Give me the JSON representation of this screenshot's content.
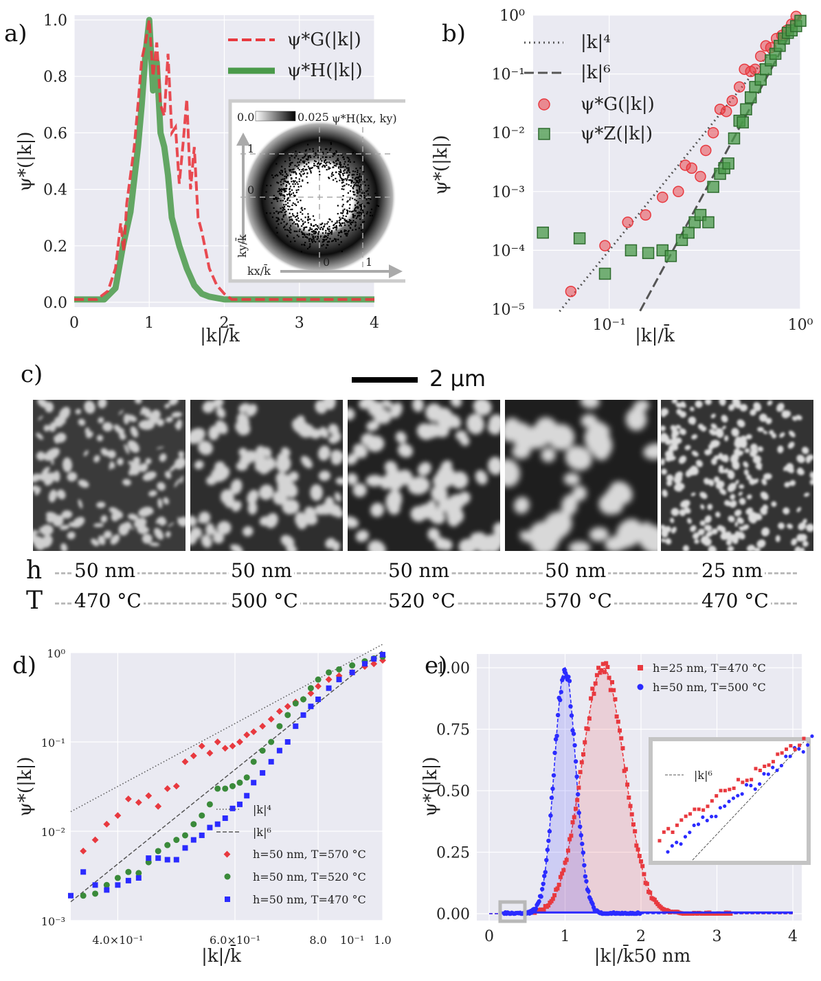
{
  "panel_labels": {
    "a": "a)",
    "b": "b)",
    "c": "c)",
    "d": "d)",
    "e": "e)"
  },
  "scalebar": {
    "label": "2 μm"
  },
  "params": {
    "h_label": "h",
    "T_label": "T",
    "h_values": [
      "50 nm",
      "50 nm",
      "50 nm",
      "50 nm",
      "25 nm"
    ],
    "T_values": [
      "470 °C",
      "500 °C",
      "520 °C",
      "570 °C",
      "470 °C"
    ]
  },
  "colors": {
    "red": "#e8393f",
    "green": "#4a9a4a",
    "blue": "#2b2bff",
    "gray": "#555555"
  },
  "chart_data": [
    {
      "id": "a",
      "type": "line",
      "xlabel": "|k|/k̄",
      "ylabel": "ψ*(|k|)",
      "xlim": [
        0,
        4
      ],
      "ylim": [
        0,
        1.0
      ],
      "xticks": [
        "0",
        "1",
        "2",
        "3",
        "4"
      ],
      "yticks": [
        "0.0",
        "0.2",
        "0.4",
        "0.6",
        "0.8",
        "1.0"
      ],
      "series": [
        {
          "name": "ψ*G(|k|)",
          "style": "dashed",
          "color": "#e8393f",
          "x": [
            0,
            0.3,
            0.45,
            0.55,
            0.62,
            0.66,
            0.7,
            0.75,
            0.8,
            0.85,
            0.9,
            0.95,
            1.0,
            1.05,
            1.1,
            1.15,
            1.2,
            1.25,
            1.3,
            1.35,
            1.4,
            1.45,
            1.5,
            1.55,
            1.6,
            1.65,
            1.7,
            1.8,
            1.9,
            2.0,
            2.1,
            4.0
          ],
          "y": [
            0.01,
            0.01,
            0.04,
            0.12,
            0.28,
            0.18,
            0.35,
            0.45,
            0.55,
            0.7,
            0.86,
            0.92,
            1.0,
            0.8,
            0.92,
            0.7,
            0.66,
            0.88,
            0.6,
            0.62,
            0.42,
            0.56,
            0.72,
            0.4,
            0.55,
            0.3,
            0.25,
            0.12,
            0.06,
            0.03,
            0.01,
            0.01
          ]
        },
        {
          "name": "ψ*H(|k|)",
          "style": "solid",
          "color": "#4a9a4a",
          "x": [
            0,
            0.4,
            0.55,
            0.65,
            0.75,
            0.85,
            0.9,
            0.95,
            1.0,
            1.05,
            1.1,
            1.15,
            1.2,
            1.25,
            1.3,
            1.4,
            1.5,
            1.6,
            1.7,
            1.8,
            2.0,
            4.0
          ],
          "y": [
            0.01,
            0.01,
            0.05,
            0.2,
            0.32,
            0.55,
            0.7,
            0.88,
            1.0,
            0.75,
            0.85,
            0.6,
            0.55,
            0.45,
            0.3,
            0.2,
            0.12,
            0.06,
            0.03,
            0.02,
            0.01,
            0.01
          ]
        }
      ],
      "inset": {
        "title": "ψ*H(kx, ky)",
        "colorbar_min": "0.0",
        "colorbar_max": "0.025",
        "xlabel": "kx/k̄",
        "ylabel": "ky/k̄",
        "ticks": [
          "0",
          "1"
        ]
      }
    },
    {
      "id": "b",
      "type": "scatter",
      "scale": "loglog",
      "xlabel": "|k|/k̄",
      "ylabel": "ψ*(|k|)",
      "xlim": [
        0.04,
        1.0
      ],
      "ylim": [
        1e-05,
        1
      ],
      "xticks": [
        "10⁻¹",
        "10⁰"
      ],
      "yticks": [
        "10⁻⁵",
        "10⁻⁴",
        "10⁻³",
        "10⁻²",
        "10⁻¹",
        "10⁰"
      ],
      "lines": [
        {
          "name": "|k|⁴",
          "style": "dotted",
          "exponent": 4,
          "coef": 1.0,
          "x": [
            0.055,
            1.0
          ]
        },
        {
          "name": "|k|⁶",
          "style": "dashed",
          "exponent": 6,
          "coef": 1.0,
          "x": [
            0.145,
            1.0
          ]
        }
      ],
      "series": [
        {
          "name": "ψ*G(|k|)",
          "marker": "circle",
          "color": "#e8393f",
          "x": [
            0.063,
            0.095,
            0.125,
            0.155,
            0.19,
            0.23,
            0.25,
            0.27,
            0.3,
            0.32,
            0.35,
            0.38,
            0.41,
            0.44,
            0.48,
            0.51,
            0.55,
            0.58,
            0.62,
            0.66,
            0.7,
            0.75,
            0.8,
            0.85,
            0.9,
            0.95
          ],
          "y": [
            2e-05,
            0.00012,
            0.0003,
            0.0004,
            0.0008,
            0.001,
            0.0028,
            0.0025,
            0.0018,
            0.005,
            0.01,
            0.025,
            0.023,
            0.035,
            0.06,
            0.12,
            0.11,
            0.12,
            0.2,
            0.3,
            0.28,
            0.4,
            0.45,
            0.55,
            0.7,
            0.95
          ]
        },
        {
          "name": "ψ*Z(|k|)",
          "marker": "square",
          "color": "#4a9a4a",
          "x": [
            0.045,
            0.07,
            0.095,
            0.13,
            0.16,
            0.19,
            0.21,
            0.24,
            0.26,
            0.28,
            0.3,
            0.33,
            0.35,
            0.38,
            0.4,
            0.42,
            0.45,
            0.48,
            0.5,
            0.52,
            0.55,
            0.58,
            0.62,
            0.66,
            0.7,
            0.74,
            0.78,
            0.82,
            0.86,
            0.9,
            0.95,
            1.0
          ],
          "y": [
            0.0002,
            0.00016,
            4e-05,
            0.0001,
            9e-05,
            0.0001,
            8e-05,
            0.00015,
            0.0002,
            0.0003,
            0.0004,
            0.0003,
            0.0012,
            0.002,
            0.0025,
            0.003,
            0.008,
            0.016,
            0.015,
            0.025,
            0.04,
            0.06,
            0.08,
            0.12,
            0.17,
            0.22,
            0.3,
            0.4,
            0.5,
            0.55,
            0.65,
            0.8
          ]
        }
      ]
    },
    {
      "id": "d",
      "type": "scatter",
      "scale": "loglog",
      "xlabel": "|k|/k̄",
      "ylabel": "ψ*(|k|)",
      "xlim": [
        0.34,
        1.0
      ],
      "ylim": [
        0.001,
        1
      ],
      "xticks": [
        "4.0×10⁻¹",
        "6.0×10⁻¹",
        "8.0",
        "10⁻¹",
        "1.0"
      ],
      "yticks": [
        "10⁻³",
        "10⁻²",
        "10⁻¹",
        "10⁰"
      ],
      "lines": [
        {
          "name": "|k|⁴",
          "style": "dotted",
          "exponent": 4,
          "coef": 1.24
        },
        {
          "name": "|k|⁶",
          "style": "dashed",
          "exponent": 6,
          "coef": 1.05
        }
      ],
      "series": [
        {
          "name": "h=50 nm, T=570 °C",
          "marker": "diamond",
          "color": "#e8393f",
          "x": [
            0.355,
            0.37,
            0.385,
            0.4,
            0.415,
            0.43,
            0.445,
            0.46,
            0.475,
            0.49,
            0.505,
            0.52,
            0.535,
            0.55,
            0.565,
            0.58,
            0.595,
            0.61,
            0.625,
            0.64,
            0.66,
            0.68,
            0.7,
            0.72,
            0.74,
            0.76,
            0.78,
            0.8,
            0.83,
            0.86,
            0.9,
            0.94,
            0.97,
            1.0
          ],
          "y": [
            0.006,
            0.008,
            0.012,
            0.015,
            0.023,
            0.021,
            0.025,
            0.019,
            0.03,
            0.032,
            0.06,
            0.07,
            0.09,
            0.075,
            0.1,
            0.085,
            0.09,
            0.1,
            0.12,
            0.13,
            0.15,
            0.18,
            0.22,
            0.25,
            0.28,
            0.3,
            0.35,
            0.42,
            0.5,
            0.55,
            0.6,
            0.7,
            0.75,
            0.82
          ]
        },
        {
          "name": "h=50 nm, T=520 °C",
          "marker": "circle",
          "color": "#3a8a3a",
          "x": [
            0.355,
            0.37,
            0.385,
            0.4,
            0.415,
            0.43,
            0.445,
            0.46,
            0.475,
            0.49,
            0.505,
            0.52,
            0.535,
            0.55,
            0.565,
            0.58,
            0.595,
            0.61,
            0.625,
            0.64,
            0.66,
            0.68,
            0.7,
            0.72,
            0.74,
            0.76,
            0.78,
            0.8,
            0.83,
            0.86,
            0.9,
            0.94,
            0.97,
            1.0
          ],
          "y": [
            0.0019,
            0.002,
            0.0025,
            0.003,
            0.0035,
            0.0034,
            0.0045,
            0.006,
            0.007,
            0.008,
            0.009,
            0.012,
            0.015,
            0.02,
            0.03,
            0.03,
            0.032,
            0.035,
            0.04,
            0.06,
            0.08,
            0.1,
            0.15,
            0.2,
            0.27,
            0.3,
            0.4,
            0.5,
            0.6,
            0.65,
            0.72,
            0.8,
            0.86,
            0.9
          ]
        },
        {
          "name": "h=50 nm, T=470 °C",
          "marker": "square",
          "color": "#2b2bff",
          "x": [
            0.34,
            0.355,
            0.37,
            0.385,
            0.4,
            0.415,
            0.43,
            0.445,
            0.46,
            0.475,
            0.49,
            0.505,
            0.52,
            0.535,
            0.55,
            0.565,
            0.58,
            0.595,
            0.61,
            0.625,
            0.64,
            0.66,
            0.68,
            0.7,
            0.72,
            0.74,
            0.76,
            0.78,
            0.8,
            0.83,
            0.86,
            0.9,
            0.94,
            0.97,
            1.0
          ],
          "y": [
            0.0019,
            0.0035,
            0.0025,
            0.0022,
            0.0025,
            0.0028,
            0.003,
            0.005,
            0.005,
            0.0048,
            0.0048,
            0.0065,
            0.008,
            0.009,
            0.011,
            0.012,
            0.014,
            0.018,
            0.02,
            0.025,
            0.035,
            0.045,
            0.06,
            0.08,
            0.1,
            0.15,
            0.2,
            0.25,
            0.3,
            0.4,
            0.5,
            0.6,
            0.75,
            0.85,
            0.95
          ]
        }
      ]
    },
    {
      "id": "e",
      "type": "scatter",
      "xlabel": "|k|/k̄50 nm",
      "ylabel": "ψ*(|k|)",
      "xlim": [
        0,
        4.1
      ],
      "ylim": [
        0,
        1.0
      ],
      "xticks": [
        "0",
        "1",
        "2",
        "3",
        "4"
      ],
      "yticks": [
        "0.00",
        "0.25",
        "0.50",
        "0.75",
        "1.00"
      ],
      "series": [
        {
          "name": "h=25 nm, T=470 °C",
          "marker": "square",
          "color": "#e8393f",
          "gaussian": {
            "mu": 1.5,
            "sigma": 0.28
          }
        },
        {
          "name": "h=50 nm, T=500 °C",
          "marker": "circle",
          "color": "#2b2bff",
          "gaussian": {
            "mu": 1.0,
            "sigma": 0.14
          }
        }
      ],
      "inset_legend": "|k|⁶"
    }
  ]
}
